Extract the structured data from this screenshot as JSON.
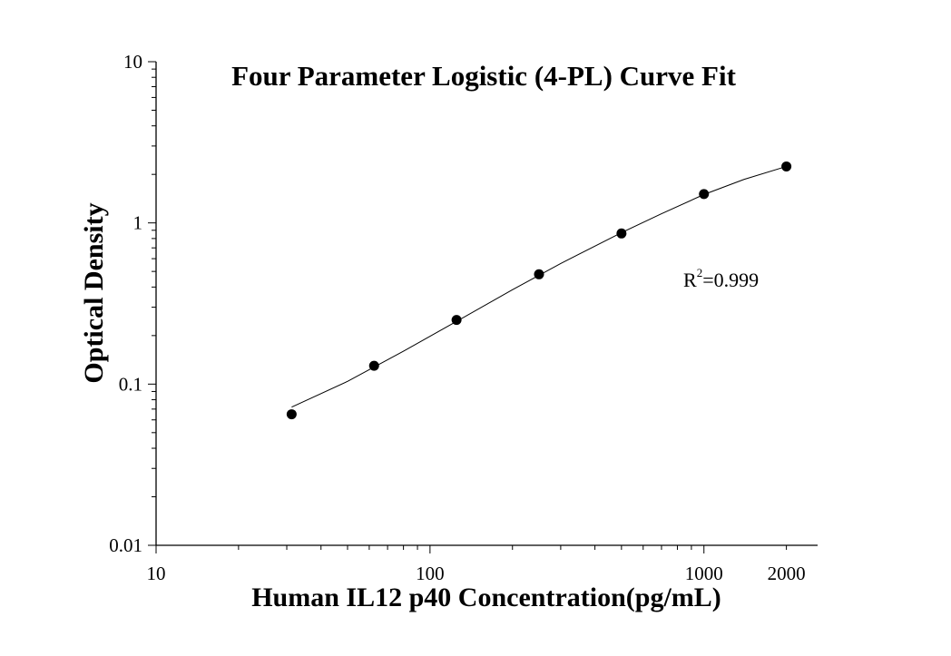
{
  "chart_data": {
    "type": "scatter",
    "title": "Four Parameter Logistic (4-PL) Curve Fit",
    "xlabel": "Human IL12 p40 Concentration(pg/mL)",
    "ylabel": "Optical Density",
    "x_scale": "log",
    "y_scale": "log",
    "xlim": [
      10,
      2600
    ],
    "ylim": [
      0.01,
      10
    ],
    "x_ticks": [
      {
        "value": 10,
        "label": "10"
      },
      {
        "value": 100,
        "label": "100"
      },
      {
        "value": 1000,
        "label": "1000"
      },
      {
        "value": 2000,
        "label": "2000"
      }
    ],
    "y_ticks": [
      {
        "value": 0.01,
        "label": "0.01"
      },
      {
        "value": 0.1,
        "label": "0.1"
      },
      {
        "value": 1,
        "label": "1"
      },
      {
        "value": 10,
        "label": "10"
      }
    ],
    "grid": false,
    "legend": "none",
    "series": [
      {
        "x": [
          31.25,
          62.5,
          125,
          250,
          500,
          1000,
          2000
        ],
        "y": [
          0.065,
          0.13,
          0.25,
          0.48,
          0.86,
          1.51,
          2.24
        ]
      }
    ],
    "fit_curve": {
      "model": "4-PL",
      "x": [
        31.25,
        50,
        80,
        125,
        200,
        300,
        500,
        700,
        1000,
        1400,
        2000
      ],
      "y": [
        0.072,
        0.104,
        0.16,
        0.245,
        0.385,
        0.56,
        0.87,
        1.14,
        1.5,
        1.86,
        2.24
      ]
    },
    "annotation": {
      "base": "R",
      "sup": "2",
      "rest": "=0.999"
    }
  }
}
